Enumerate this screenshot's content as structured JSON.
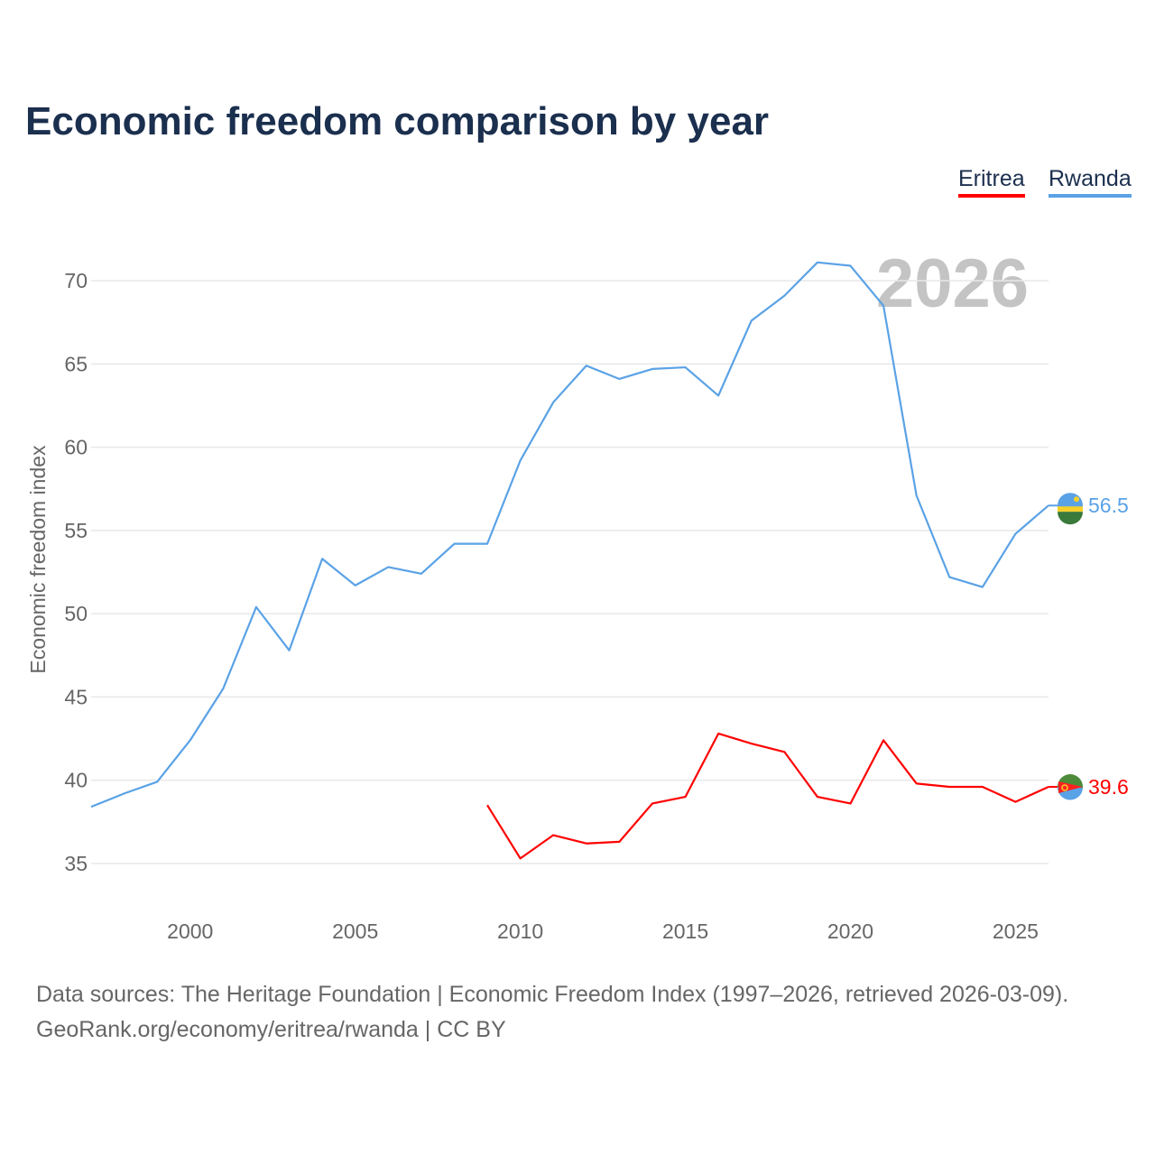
{
  "chart_data": {
    "type": "line",
    "title": "Economic freedom comparison by year",
    "ylabel": "Economic freedom index",
    "xlabel": "",
    "ylim": [
      32.5,
      72.5
    ],
    "xlim": [
      1997,
      2026
    ],
    "yticks": [
      35,
      40,
      45,
      50,
      55,
      60,
      65,
      70
    ],
    "xticks": [
      2000,
      2005,
      2010,
      2015,
      2020,
      2025
    ],
    "grid": true,
    "legend_position": "top-right",
    "year_watermark": "2026",
    "series": [
      {
        "name": "Eritrea",
        "color": "#ff0000",
        "end_label": "39.6",
        "x": [
          2009,
          2010,
          2011,
          2012,
          2013,
          2014,
          2015,
          2016,
          2017,
          2018,
          2019,
          2020,
          2021,
          2022,
          2023,
          2024,
          2025,
          2026
        ],
        "values": [
          38.5,
          35.3,
          36.7,
          36.2,
          36.3,
          38.6,
          39.0,
          42.8,
          42.2,
          41.7,
          39.0,
          38.6,
          42.4,
          39.8,
          39.6,
          39.6,
          38.7,
          39.6
        ]
      },
      {
        "name": "Rwanda",
        "color": "#5aa2e6",
        "end_label": "56.5",
        "x": [
          1997,
          1998,
          1999,
          2000,
          2001,
          2002,
          2003,
          2004,
          2005,
          2006,
          2007,
          2008,
          2009,
          2010,
          2011,
          2012,
          2013,
          2014,
          2015,
          2016,
          2017,
          2018,
          2019,
          2020,
          2021,
          2022,
          2023,
          2024,
          2025,
          2026
        ],
        "values": [
          38.4,
          39.2,
          39.9,
          42.4,
          45.5,
          50.4,
          47.8,
          53.3,
          51.7,
          52.8,
          52.4,
          54.2,
          54.2,
          59.2,
          62.7,
          64.9,
          64.1,
          64.7,
          64.8,
          63.1,
          67.6,
          69.1,
          71.1,
          70.9,
          68.5,
          57.1,
          52.2,
          51.6,
          54.8,
          56.5
        ]
      }
    ]
  },
  "footer": {
    "line1": "Data sources: The Heritage Foundation | Economic Freedom Index (1997–2026, retrieved 2026-03-09).",
    "line2": "GeoRank.org/economy/eritrea/rwanda | CC BY"
  }
}
